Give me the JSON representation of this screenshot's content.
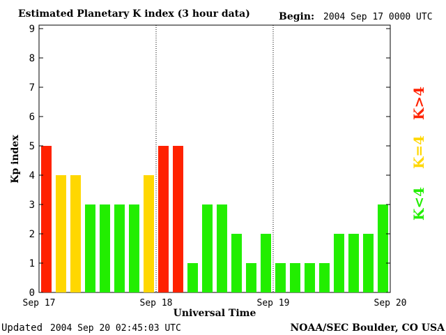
{
  "header": {
    "title": "Estimated Planetary K index (3 hour data)",
    "begin_label": "Begin:",
    "begin_value": "2004 Sep 17 0000 UTC"
  },
  "footer": {
    "updated_label": "Updated",
    "updated_value": "2004 Sep 20 02:45:03 UTC",
    "source": "NOAA/SEC Boulder, CO USA"
  },
  "legend": [
    {
      "label": "K>4",
      "color": "#ff2200"
    },
    {
      "label": "K=4",
      "color": "#ffd700"
    },
    {
      "label": "K<4",
      "color": "#22ee00"
    }
  ],
  "chart_data": {
    "type": "bar",
    "title": "Estimated Planetary K index (3 hour data)",
    "xlabel": "Universal Time",
    "ylabel": "Kp index",
    "ylim": [
      0,
      9
    ],
    "yticks": [
      "0",
      "1",
      "2",
      "3",
      "4",
      "5",
      "6",
      "7",
      "8",
      "9"
    ],
    "day_labels": [
      "Sep 17",
      "Sep 18",
      "Sep 19",
      "Sep 20"
    ],
    "bars_per_day": 8,
    "values": [
      5,
      4,
      4,
      3,
      3,
      3,
      3,
      4,
      5,
      5,
      1,
      3,
      3,
      2,
      1,
      2,
      1,
      1,
      1,
      1,
      2,
      2,
      2,
      3
    ],
    "colors": {
      "above": "#ff2200",
      "equal": "#ffd700",
      "below": "#22ee00"
    },
    "threshold": 4,
    "grid": false
  }
}
